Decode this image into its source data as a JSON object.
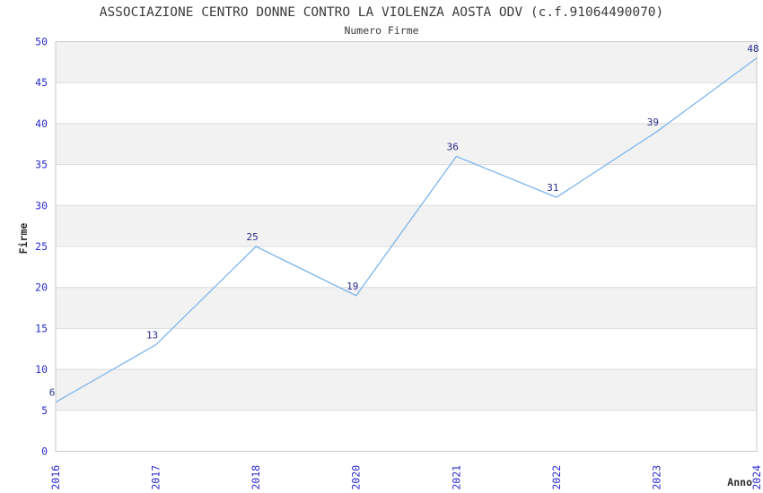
{
  "chart_data": {
    "type": "line",
    "title": "ASSOCIAZIONE CENTRO DONNE CONTRO LA VIOLENZA AOSTA ODV (c.f.91064490070)",
    "subtitle": "Numero Firme",
    "xlabel": "Anno",
    "ylabel": "Firme",
    "categories": [
      "2016",
      "2017",
      "2018",
      "2020",
      "2021",
      "2022",
      "2023",
      "2024"
    ],
    "values": [
      6,
      13,
      25,
      19,
      36,
      31,
      39,
      48
    ],
    "ylim": [
      0,
      50
    ],
    "ytick_step": 5,
    "yticks": [
      0,
      5,
      10,
      15,
      20,
      25,
      30,
      35,
      40,
      45,
      50
    ],
    "grid": "horizontal-lines-with-alternating-bands",
    "legend": "none",
    "x_tick_rotation_deg": 90,
    "point_labels_visible": true,
    "colors": {
      "line": "#7cb5ec",
      "point_label": "#2b2b8e",
      "tick_label": "#2a2ace",
      "text": "#3c3c3c",
      "band": "#f2f2f2",
      "grid_line": "#dcdcdc",
      "plot_border": "#c9c9c9",
      "background": "#ffffff"
    }
  }
}
